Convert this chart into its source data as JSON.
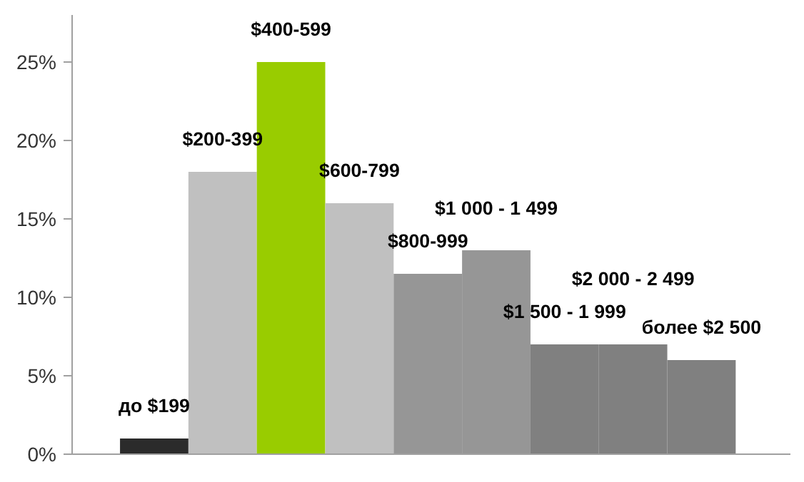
{
  "chart_data": {
    "type": "bar",
    "categories": [
      "до $199",
      "$200-399",
      "$400-599",
      "$600-799",
      "$800-999",
      "$1 000 - 1 499",
      "$1 500 - 1 999",
      "$2 000 - 2 499",
      "более $2 500"
    ],
    "values": [
      1,
      18,
      25,
      16,
      11.5,
      13,
      7,
      7,
      6
    ],
    "colors": [
      "#2b2b2b",
      "#c0c0c0",
      "#99cc00",
      "#c0c0c0",
      "#969696",
      "#969696",
      "#808080",
      "#808080",
      "#808080"
    ],
    "ylim": [
      0,
      28
    ],
    "yticks": [
      {
        "value": 0,
        "label": "0%"
      },
      {
        "value": 5,
        "label": "5%"
      },
      {
        "value": 10,
        "label": "10%"
      },
      {
        "value": 15,
        "label": "15%"
      },
      {
        "value": 20,
        "label": "20%"
      },
      {
        "value": 25,
        "label": "25%"
      }
    ],
    "grid": false
  }
}
